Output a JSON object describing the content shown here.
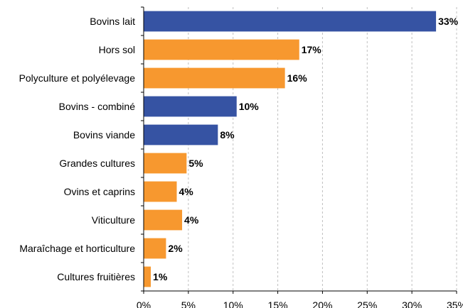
{
  "chart_data": {
    "type": "bar",
    "orientation": "horizontal",
    "categories": [
      "Bovins lait",
      "Hors sol",
      "Polyculture et polyélevage",
      "Bovins - combiné",
      "Bovins viande",
      "Grandes cultures",
      "Ovins et caprins",
      "Viticulture",
      "Maraîchage et horticulture",
      "Cultures fruitières"
    ],
    "values": [
      32.7,
      17.4,
      15.8,
      10.4,
      8.3,
      4.8,
      3.7,
      4.3,
      2.5,
      0.8
    ],
    "data_labels": [
      "33%",
      "17%",
      "16%",
      "10%",
      "8%",
      "5%",
      "4%",
      "4%",
      "2%",
      "1%"
    ],
    "bar_colors": [
      "#3653a3",
      "#f7982f",
      "#f7982f",
      "#3653a3",
      "#3653a3",
      "#f7982f",
      "#f7982f",
      "#f7982f",
      "#f7982f",
      "#f7982f"
    ],
    "xlim": [
      0,
      35
    ],
    "x_ticks": [
      "0%",
      "5%",
      "10%",
      "15%",
      "20%",
      "25%",
      "30%",
      "35%"
    ],
    "grid": "vertical dashed",
    "legend": "none",
    "title": "",
    "xlabel": "",
    "ylabel": ""
  }
}
